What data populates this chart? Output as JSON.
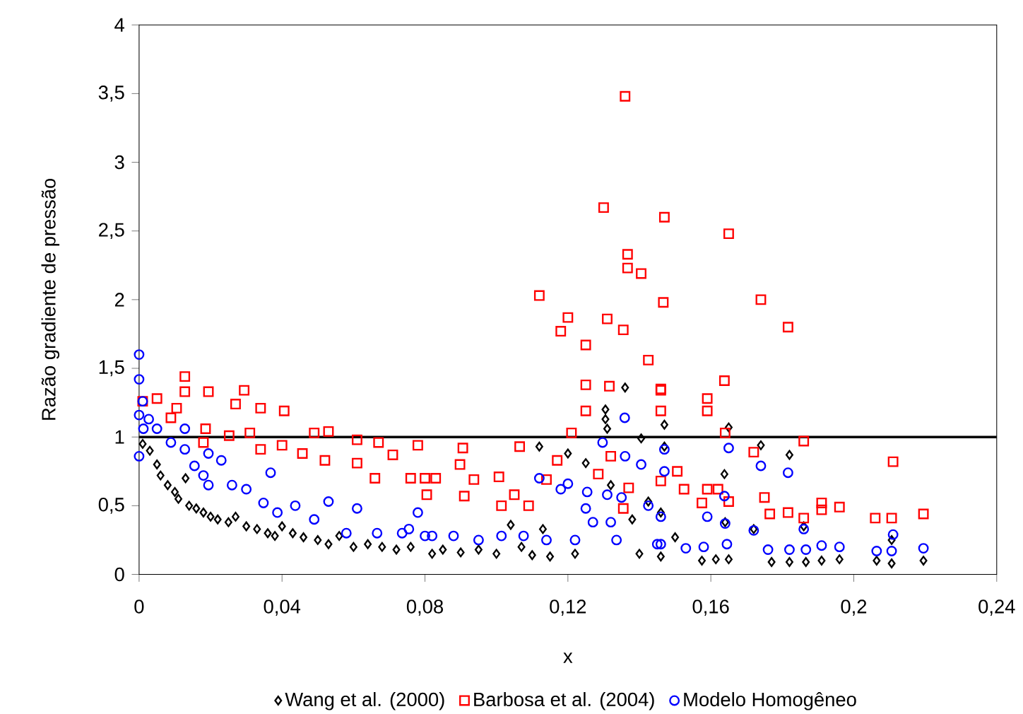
{
  "chart_data": {
    "type": "scatter",
    "xlabel": "x",
    "ylabel": "Razão gradiente de pressão",
    "xlim": [
      0,
      0.24
    ],
    "ylim": [
      0,
      4
    ],
    "xticks": [
      {
        "value": 0,
        "label": "0"
      },
      {
        "value": 0.04,
        "label": "0,04"
      },
      {
        "value": 0.08,
        "label": "0,08"
      },
      {
        "value": 0.12,
        "label": "0,12"
      },
      {
        "value": 0.16,
        "label": "0,16"
      },
      {
        "value": 0.2,
        "label": "0,2"
      },
      {
        "value": 0.24,
        "label": "0,24"
      }
    ],
    "yticks": [
      {
        "value": 0,
        "label": "0"
      },
      {
        "value": 0.5,
        "label": "0,5"
      },
      {
        "value": 1,
        "label": "1"
      },
      {
        "value": 1.5,
        "label": "1,5"
      },
      {
        "value": 2,
        "label": "2"
      },
      {
        "value": 2.5,
        "label": "2,5"
      },
      {
        "value": 3,
        "label": "3"
      },
      {
        "value": 3.5,
        "label": "3,5"
      },
      {
        "value": 4,
        "label": "4"
      }
    ],
    "grid": false,
    "legend": "bottom",
    "ref_lines": [
      {
        "axis": "y",
        "value": 1,
        "color": "#000000",
        "line_style": "solid"
      }
    ],
    "series": [
      {
        "name": "Wang et al. (2000)",
        "color": "#000000",
        "marker": "diamond",
        "x": [
          0.001,
          0.003,
          0.005,
          0.006,
          0.008,
          0.01,
          0.011,
          0.013,
          0.014,
          0.016,
          0.018,
          0.02,
          0.022,
          0.025,
          0.027,
          0.03,
          0.033,
          0.036,
          0.038,
          0.04,
          0.043,
          0.046,
          0.05,
          0.053,
          0.056,
          0.06,
          0.064,
          0.068,
          0.072,
          0.076,
          0.082,
          0.085,
          0.09,
          0.095,
          0.1,
          0.104,
          0.107,
          0.11,
          0.112,
          0.113,
          0.115,
          0.12,
          0.122,
          0.125,
          0.1305,
          0.1305,
          0.131,
          0.132,
          0.136,
          0.138,
          0.14,
          0.1405,
          0.1425,
          0.146,
          0.146,
          0.147,
          0.147,
          0.15,
          0.1575,
          0.1614,
          0.1638,
          0.164,
          0.165,
          0.165,
          0.172,
          0.174,
          0.177,
          0.182,
          0.182,
          0.186,
          0.1866,
          0.191,
          0.196,
          0.2064,
          0.2106,
          0.2106,
          0.2195
        ],
        "values": [
          0.95,
          0.9,
          0.8,
          0.72,
          0.65,
          0.6,
          0.55,
          0.7,
          0.5,
          0.48,
          0.45,
          0.42,
          0.4,
          0.38,
          0.42,
          0.35,
          0.33,
          0.3,
          0.28,
          0.35,
          0.3,
          0.27,
          0.25,
          0.22,
          0.28,
          0.2,
          0.22,
          0.2,
          0.18,
          0.2,
          0.15,
          0.18,
          0.16,
          0.18,
          0.15,
          0.36,
          0.2,
          0.14,
          0.93,
          0.33,
          0.13,
          0.88,
          0.15,
          0.81,
          1.2,
          1.13,
          1.06,
          0.65,
          1.36,
          0.4,
          0.15,
          0.99,
          0.53,
          0.45,
          0.13,
          1.09,
          0.93,
          0.27,
          0.1,
          0.11,
          0.73,
          0.38,
          1.07,
          0.11,
          0.33,
          0.94,
          0.09,
          0.87,
          0.09,
          0.35,
          0.09,
          0.1,
          0.11,
          0.1,
          0.25,
          0.08,
          0.1
        ]
      },
      {
        "name": "Barbosa et al. (2004)",
        "color": "#ff0000",
        "marker": "square",
        "x": [
          0.001,
          0.005,
          0.0089,
          0.0105,
          0.0128,
          0.0128,
          0.018,
          0.0186,
          0.0194,
          0.0252,
          0.027,
          0.0294,
          0.031,
          0.034,
          0.034,
          0.04,
          0.0406,
          0.0457,
          0.049,
          0.052,
          0.053,
          0.061,
          0.061,
          0.066,
          0.067,
          0.071,
          0.076,
          0.078,
          0.08,
          0.0805,
          0.083,
          0.0898,
          0.0906,
          0.091,
          0.0937,
          0.1007,
          0.1014,
          0.105,
          0.1065,
          0.109,
          0.112,
          0.114,
          0.117,
          0.118,
          0.12,
          0.121,
          0.125,
          0.125,
          0.125,
          0.1285,
          0.13,
          0.1316,
          0.131,
          0.132,
          0.1355,
          0.1355,
          0.136,
          0.1367,
          0.1367,
          0.137,
          0.1405,
          0.1425,
          0.146,
          0.146,
          0.146,
          0.146,
          0.1467,
          0.147,
          0.1506,
          0.1525,
          0.1575,
          0.159,
          0.159,
          0.159,
          0.162,
          0.1638,
          0.164,
          0.165,
          0.165,
          0.172,
          0.174,
          0.175,
          0.1765,
          0.1816,
          0.1816,
          0.186,
          0.186,
          0.191,
          0.191,
          0.196,
          0.206,
          0.2106,
          0.211,
          0.2195
        ],
        "values": [
          1.26,
          1.28,
          1.14,
          1.21,
          1.44,
          1.33,
          0.96,
          1.06,
          1.33,
          1.01,
          1.24,
          1.34,
          1.03,
          1.21,
          0.91,
          0.94,
          1.19,
          0.88,
          1.03,
          0.83,
          1.04,
          0.98,
          0.81,
          0.7,
          0.96,
          0.87,
          0.7,
          0.94,
          0.7,
          0.58,
          0.7,
          0.8,
          0.92,
          0.57,
          0.69,
          0.71,
          0.5,
          0.58,
          0.93,
          0.5,
          2.03,
          0.69,
          0.83,
          1.77,
          1.87,
          1.03,
          1.19,
          1.67,
          1.38,
          0.73,
          2.67,
          1.37,
          1.86,
          0.86,
          0.48,
          1.78,
          3.48,
          2.33,
          2.23,
          0.63,
          2.19,
          1.56,
          1.34,
          1.19,
          0.68,
          1.35,
          1.98,
          2.6,
          0.75,
          0.62,
          0.52,
          1.28,
          1.19,
          0.62,
          0.62,
          1.41,
          1.03,
          2.48,
          0.53,
          0.89,
          2.0,
          0.56,
          0.44,
          1.8,
          0.45,
          0.97,
          0.41,
          0.52,
          0.47,
          0.49,
          0.41,
          0.41,
          0.82,
          0.44
        ]
      },
      {
        "name": "Modelo Homogêneo",
        "color": "#0000ff",
        "marker": "circle",
        "x": [
          0,
          0,
          0.001,
          0,
          0.0012,
          0,
          0.0027,
          0.005,
          0.0089,
          0.0128,
          0.0128,
          0.0155,
          0.018,
          0.0194,
          0.023,
          0.0194,
          0.026,
          0.03,
          0.0368,
          0.0348,
          0.0387,
          0.0437,
          0.049,
          0.053,
          0.058,
          0.061,
          0.0666,
          0.0736,
          0.0755,
          0.078,
          0.08,
          0.082,
          0.088,
          0.095,
          0.1014,
          0.1076,
          0.112,
          0.114,
          0.118,
          0.12,
          0.122,
          0.125,
          0.1254,
          0.127,
          0.1297,
          0.131,
          0.132,
          0.1336,
          0.135,
          0.1359,
          0.136,
          0.1405,
          0.1425,
          0.145,
          0.146,
          0.146,
          0.147,
          0.147,
          0.153,
          0.158,
          0.159,
          0.1638,
          0.164,
          0.1645,
          0.165,
          0.172,
          0.174,
          0.176,
          0.1816,
          0.182,
          0.186,
          0.1866,
          0.191,
          0.196,
          0.2064,
          0.2106,
          0.211,
          0.2195
        ],
        "values": [
          1.6,
          1.42,
          1.26,
          1.16,
          1.06,
          0.86,
          1.13,
          1.06,
          0.96,
          1.06,
          0.91,
          0.79,
          0.72,
          0.88,
          0.83,
          0.65,
          0.65,
          0.62,
          0.74,
          0.52,
          0.45,
          0.5,
          0.4,
          0.53,
          0.3,
          0.48,
          0.3,
          0.3,
          0.33,
          0.45,
          0.28,
          0.28,
          0.28,
          0.25,
          0.28,
          0.28,
          0.7,
          0.25,
          0.62,
          0.66,
          0.25,
          0.48,
          0.6,
          0.38,
          0.96,
          0.58,
          0.38,
          0.25,
          0.56,
          1.14,
          0.86,
          0.8,
          0.5,
          0.22,
          0.42,
          0.22,
          0.91,
          0.75,
          0.19,
          0.2,
          0.42,
          0.57,
          0.37,
          0.22,
          0.92,
          0.32,
          0.79,
          0.18,
          0.74,
          0.18,
          0.33,
          0.18,
          0.21,
          0.2,
          0.17,
          0.17,
          0.29,
          0.19
        ]
      }
    ]
  }
}
